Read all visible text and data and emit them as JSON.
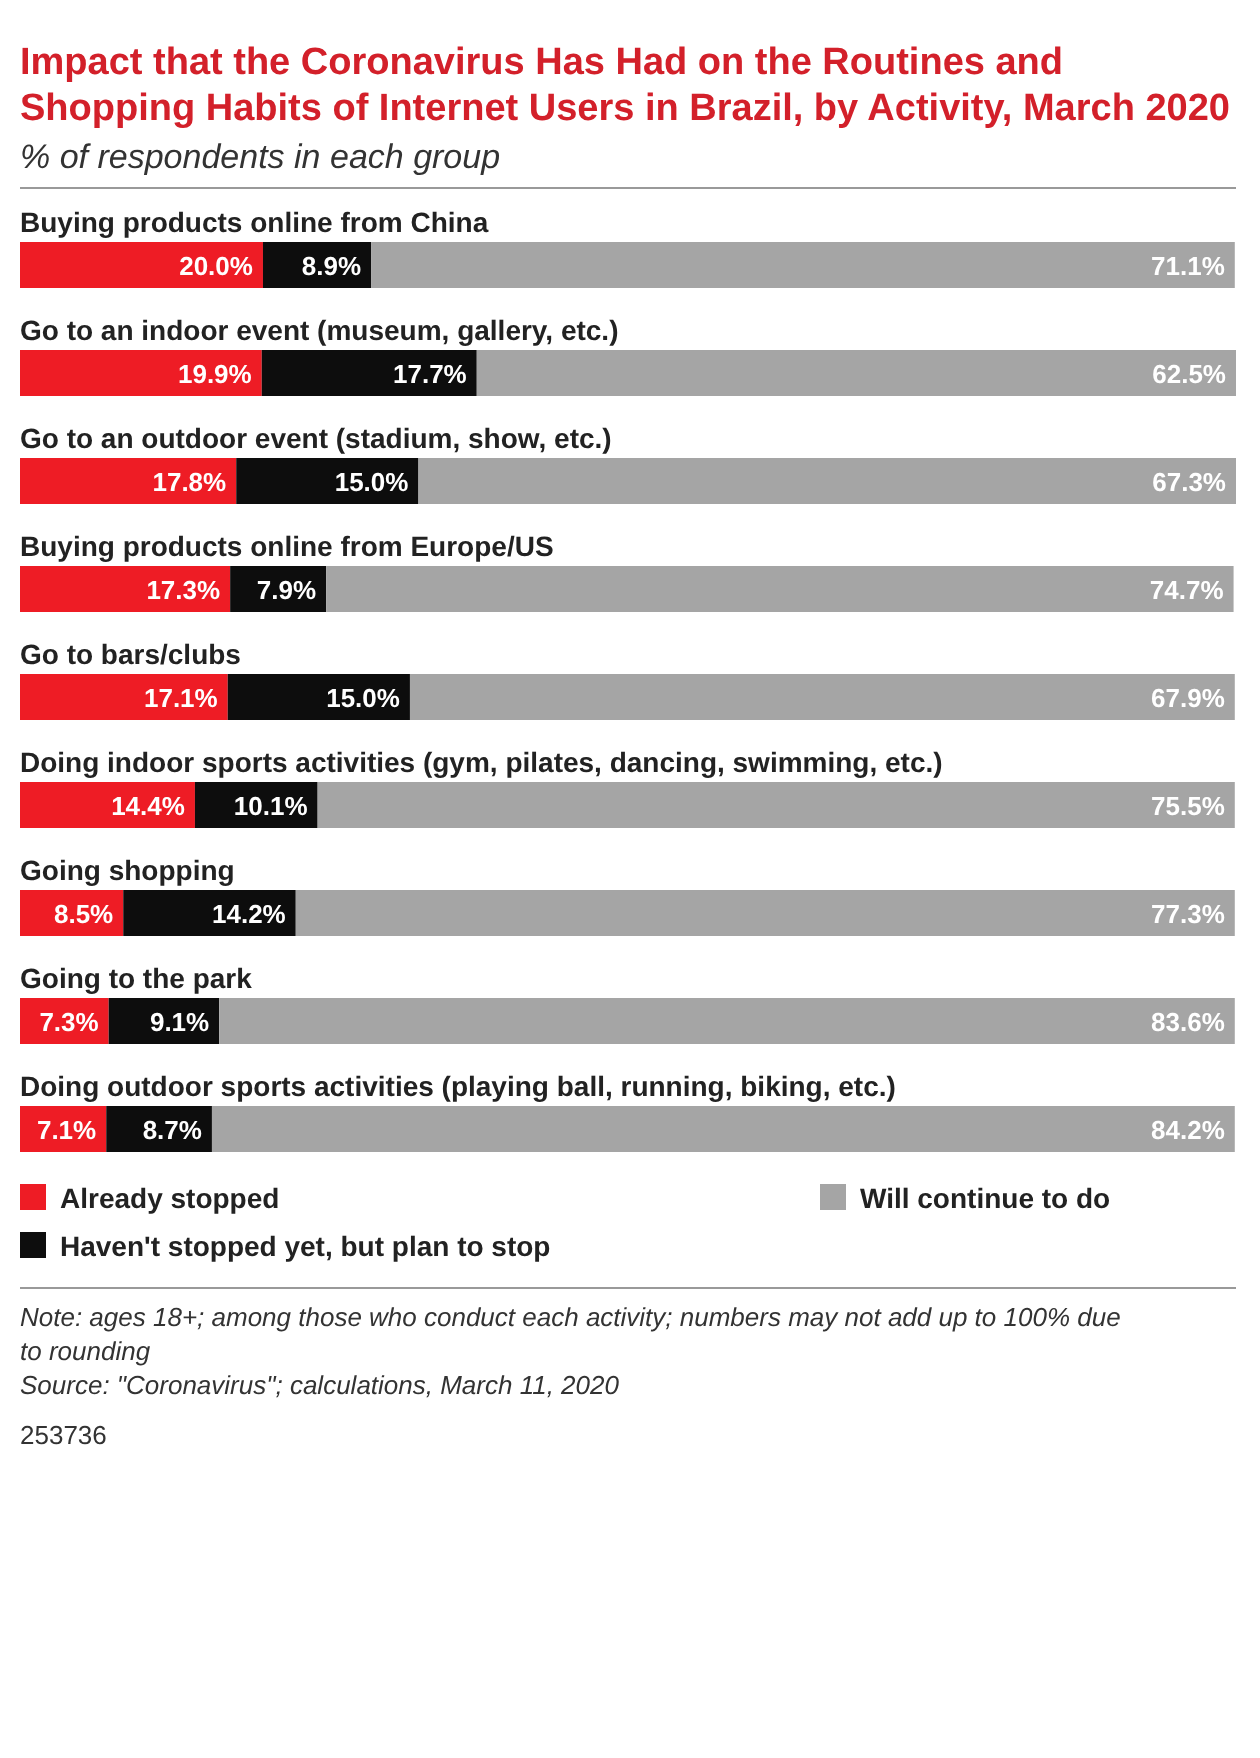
{
  "chart_data": {
    "type": "bar",
    "orientation": "horizontal",
    "stacked": true,
    "legend": "bottom",
    "title": "Impact that the Coronavirus Has Had on the Routines and Shopping Habits of Internet Users in Brazil, by Activity, March 2020",
    "subtitle": "% of respondents in each group",
    "categories": [
      "Buying products online from China",
      "Go to an indoor event (museum, gallery, etc.)",
      "Go to an outdoor event (stadium, show, etc.)",
      "Buying products online from Europe/US",
      "Go to bars/clubs",
      "Doing indoor sports activities (gym, pilates, dancing, swimming, etc.)",
      "Going shopping",
      "Going to the park",
      "Doing outdoor sports activities (playing ball, running, biking, etc.)"
    ],
    "series": [
      {
        "name": "Already stopped",
        "color": "#ee1c25",
        "values": [
          20.0,
          19.9,
          17.8,
          17.3,
          17.1,
          14.4,
          8.5,
          7.3,
          7.1
        ],
        "value_labels": [
          "20.0%",
          "19.9%",
          "17.8%",
          "17.3%",
          "17.1%",
          "14.4%",
          "8.5%",
          "7.3%",
          "7.1%"
        ]
      },
      {
        "name": "Haven't stopped yet, but plan to stop",
        "color": "#0d0d0d",
        "values": [
          8.9,
          17.7,
          15.0,
          7.9,
          15.0,
          10.1,
          14.2,
          9.1,
          8.7
        ],
        "value_labels": [
          "8.9%",
          "17.7%",
          "15.0%",
          "7.9%",
          "15.0%",
          "10.1%",
          "14.2%",
          "9.1%",
          "8.7%"
        ]
      },
      {
        "name": "Will continue to do",
        "color": "#a5a5a5",
        "values": [
          71.1,
          62.5,
          67.3,
          74.7,
          67.9,
          75.5,
          77.3,
          83.6,
          84.2
        ],
        "value_labels": [
          "71.1%",
          "62.5%",
          "67.3%",
          "74.7%",
          "67.9%",
          "75.5%",
          "77.3%",
          "83.6%",
          "84.2%"
        ]
      }
    ],
    "annotations": [
      "Note: ages 18+; among those who conduct each activity; numbers may not add up to 100% due to rounding",
      "Source: \"Coronavirus\"; calculations, March 11, 2020",
      "253736"
    ]
  }
}
